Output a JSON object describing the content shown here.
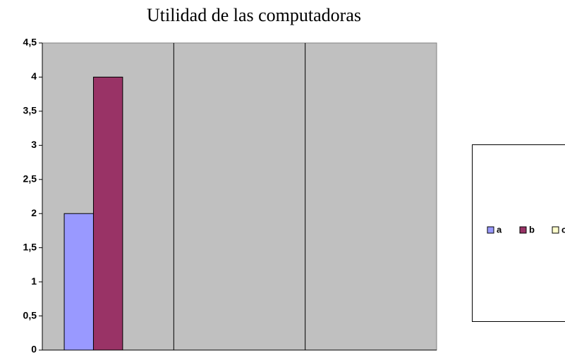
{
  "chart_data": {
    "type": "bar",
    "title": "Utilidad de las computadoras",
    "categories": [
      null,
      null,
      null
    ],
    "series": [
      {
        "name": "a",
        "color": "#9999ff",
        "values": [
          2,
          null,
          null
        ]
      },
      {
        "name": "b",
        "color": "#993366",
        "values": [
          4,
          null,
          null
        ]
      },
      {
        "name": "c",
        "color": "#ffffcc",
        "values": [
          null,
          null,
          null
        ]
      }
    ],
    "ylim": [
      0,
      4.5
    ],
    "yticks": [
      0,
      {
        "value": 0.5,
        "label": "0,5"
      },
      1,
      {
        "value": 1.5,
        "label": "1,5"
      },
      2,
      {
        "value": 2.5,
        "label": "2,5"
      },
      3,
      {
        "value": 3.5,
        "label": "3,5"
      },
      4,
      {
        "value": 4.5,
        "label": "4,5"
      }
    ],
    "grid": false,
    "legend": "right",
    "plot_background": "#c0c0c0"
  }
}
